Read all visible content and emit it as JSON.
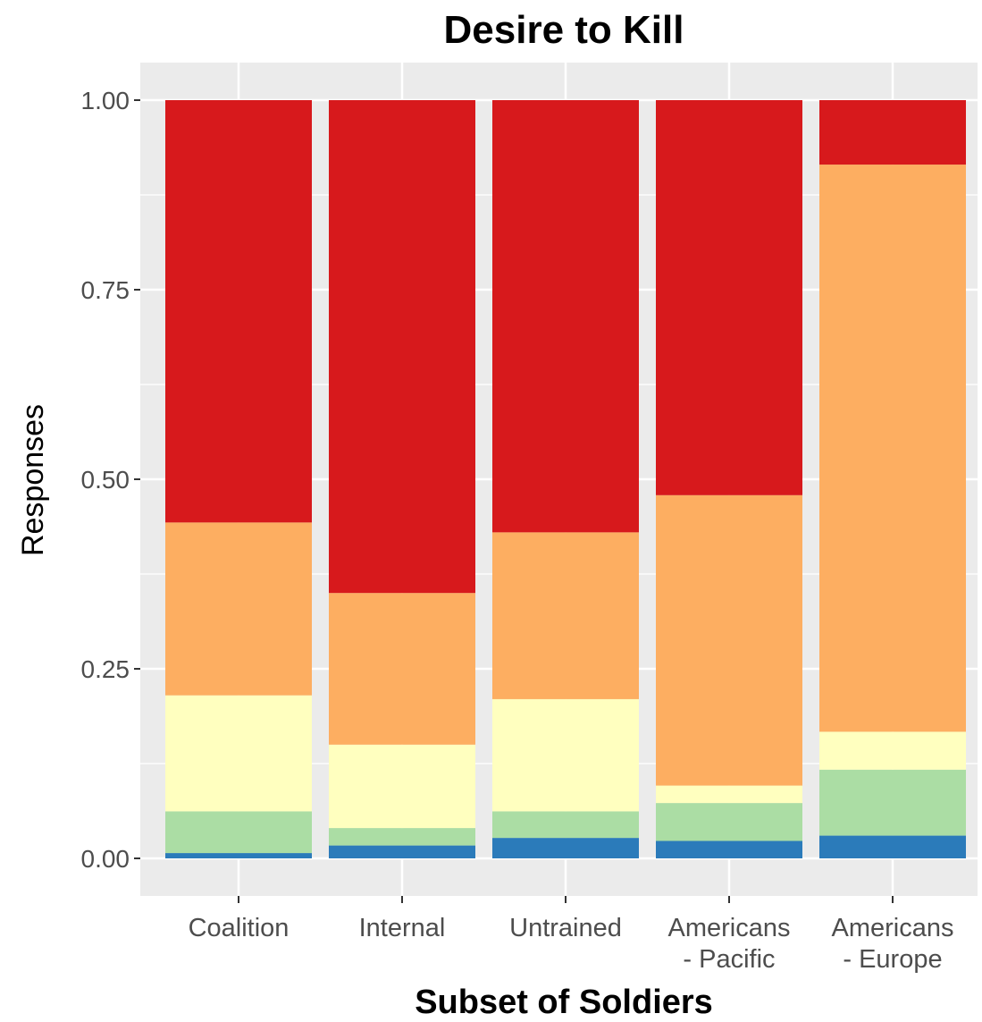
{
  "chart_data": {
    "type": "bar",
    "stacked": true,
    "title": "Desire to Kill",
    "xlabel": "Subset of Soldiers",
    "ylabel": "Responses",
    "ylim": [
      0,
      1
    ],
    "yticks": [
      "0.00",
      "0.25",
      "0.50",
      "0.75",
      "1.00"
    ],
    "grid": true,
    "categories": [
      [
        "Coalition"
      ],
      [
        "Internal"
      ],
      [
        "Untrained"
      ],
      [
        "Americans",
        "- Pacific"
      ],
      [
        "Americans",
        "- Europe"
      ]
    ],
    "series": [
      {
        "color": "#2b7bba",
        "values": [
          0.007,
          0.017,
          0.027,
          0.023,
          0.03
        ]
      },
      {
        "color": "#abdda4",
        "values": [
          0.055,
          0.023,
          0.035,
          0.05,
          0.087
        ]
      },
      {
        "color": "#ffffbf",
        "values": [
          0.153,
          0.11,
          0.148,
          0.023,
          0.05
        ]
      },
      {
        "color": "#fdae61",
        "values": [
          0.228,
          0.2,
          0.22,
          0.383,
          0.748
        ]
      },
      {
        "color": "#d7191c",
        "values": [
          0.557,
          0.65,
          0.57,
          0.521,
          0.085
        ]
      }
    ],
    "panel_background": "#ebebeb",
    "grid_color": "#ffffff"
  }
}
